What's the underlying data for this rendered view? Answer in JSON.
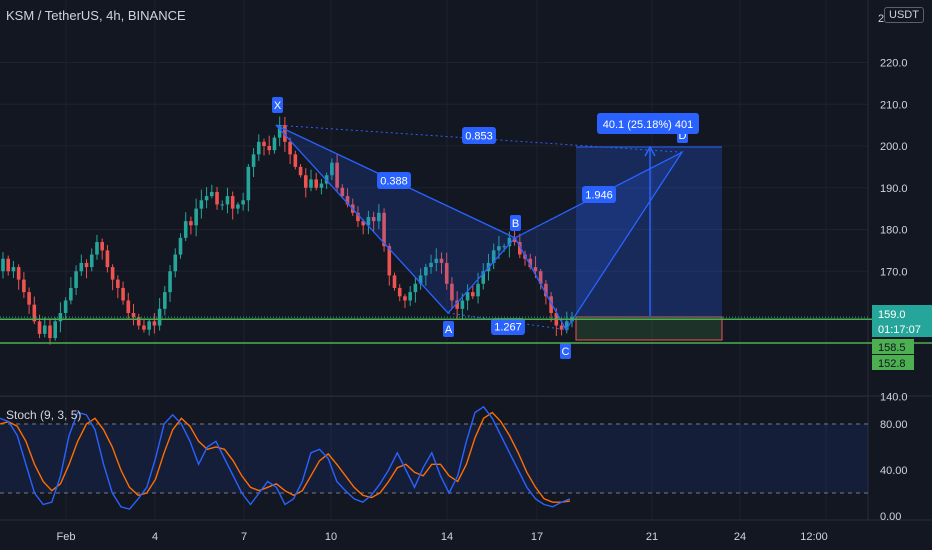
{
  "header": {
    "symbol_title": "KSM / TetherUS, 4h, BINANCE",
    "currency": "USDT"
  },
  "colors": {
    "up": "#26a69a",
    "down": "#ef5350",
    "pattern": "#2962ff",
    "support": "#4caf50",
    "stoch_k": "#2962ff",
    "stoch_d": "#ff6d00"
  },
  "price_axis": {
    "top_partial": "2",
    "ticks": [
      "220.0",
      "210.0",
      "200.0",
      "190.0",
      "180.0",
      "170.0",
      "140.0"
    ],
    "current_price": "159.0",
    "countdown": "01:17:07",
    "level_labels": [
      "158.5",
      "152.8"
    ],
    "tick_partial": "1"
  },
  "time_axis": {
    "labels": [
      "Feb",
      "4",
      "7",
      "10",
      "14",
      "17",
      "21",
      "24",
      "12:00"
    ]
  },
  "pattern": {
    "points": [
      {
        "label": "X",
        "price": 205
      },
      {
        "label": "A",
        "price": 160
      },
      {
        "label": "B",
        "price": 178
      },
      {
        "label": "C",
        "price": 156
      },
      {
        "label": "D",
        "price": 198.5
      }
    ],
    "ratios": [
      "0.853",
      "0.388",
      "1.267",
      "1.946"
    ],
    "measure_label": "40.1 (25.18%) 401"
  },
  "support_levels": [
    158.5,
    152.8
  ],
  "stoch": {
    "label": "Stoch (9, 3, 5)",
    "ticks": [
      "80.00",
      "40.00",
      "0.00"
    ],
    "k": [
      85,
      82,
      70,
      45,
      20,
      10,
      12,
      35,
      70,
      90,
      88,
      75,
      45,
      20,
      8,
      6,
      15,
      25,
      50,
      80,
      88,
      80,
      65,
      45,
      60,
      65,
      50,
      35,
      20,
      10,
      20,
      30,
      25,
      10,
      15,
      30,
      55,
      58,
      50,
      30,
      22,
      15,
      12,
      18,
      28,
      40,
      55,
      40,
      25,
      42,
      55,
      35,
      20,
      35,
      65,
      90,
      95,
      85,
      70,
      55,
      40,
      25,
      15,
      10,
      8,
      12,
      15
    ],
    "d": [
      80,
      82,
      78,
      65,
      45,
      30,
      22,
      28,
      45,
      65,
      80,
      85,
      75,
      60,
      40,
      25,
      18,
      20,
      32,
      55,
      75,
      85,
      78,
      65,
      58,
      60,
      58,
      48,
      35,
      25,
      22,
      25,
      28,
      22,
      18,
      22,
      35,
      48,
      54,
      45,
      35,
      25,
      18,
      16,
      20,
      30,
      42,
      45,
      38,
      35,
      45,
      45,
      35,
      30,
      45,
      68,
      85,
      90,
      82,
      70,
      55,
      38,
      25,
      15,
      12,
      12,
      13
    ]
  },
  "chart_data": {
    "type": "candlestick",
    "title": "KSM / TetherUS, 4h, BINANCE",
    "ylim": [
      140,
      222
    ],
    "x_tick_labels": [
      "Feb",
      "4",
      "7",
      "10",
      "14",
      "17",
      "21",
      "24",
      "12:00"
    ],
    "closes": [
      173,
      170,
      171,
      168,
      165,
      162,
      158,
      155,
      157,
      154,
      158,
      160,
      163,
      166,
      170,
      172,
      171,
      174,
      177,
      175,
      171,
      168,
      166,
      163,
      160,
      159,
      157,
      156,
      158,
      157,
      161,
      165,
      170,
      174,
      178,
      182,
      181,
      185,
      187,
      188,
      189,
      186,
      186,
      188,
      185,
      186,
      187,
      195,
      198,
      201,
      200,
      199,
      202,
      205,
      201,
      198,
      195,
      193,
      190,
      192,
      190,
      191,
      193,
      196,
      190,
      188,
      186,
      184,
      182,
      181,
      183,
      182,
      184,
      176,
      169,
      166,
      164,
      163,
      165,
      167,
      169,
      171,
      172,
      173,
      172,
      167,
      163,
      161,
      163,
      165,
      164,
      167,
      170,
      172,
      175,
      176,
      176,
      178,
      177,
      174,
      173,
      171,
      170,
      167,
      164,
      160,
      157,
      156,
      158,
      159
    ]
  }
}
